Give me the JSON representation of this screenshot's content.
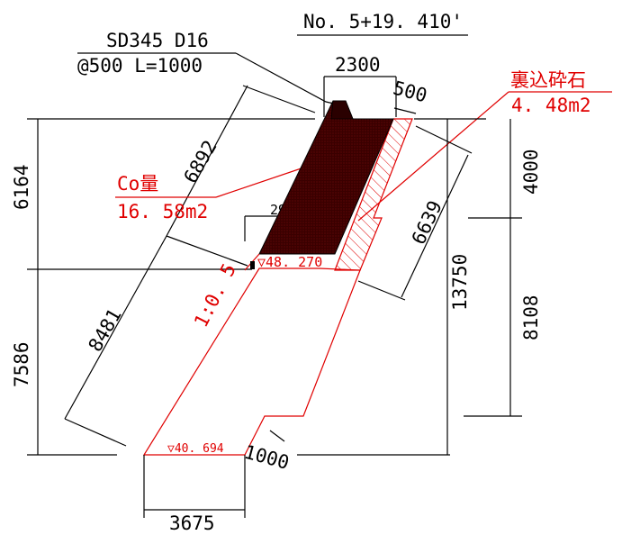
{
  "station": "No. 5+19. 410'",
  "rebar": {
    "line1": "SD345 D16",
    "line2": "@500 L=1000"
  },
  "backfill": {
    "label": "裏込砕石",
    "area": "4. 48m2"
  },
  "concrete": {
    "label": "Co量",
    "area": "16. 58m2"
  },
  "slope_ratio": "1:0. 5",
  "elevations": {
    "upper": "▽48. 270",
    "lower": "▽40. 694"
  },
  "dimensions": {
    "top_width": "2300",
    "backfill_width": "500",
    "crest_to_step_left": "6164",
    "lower_height_left": "7586",
    "upper_slope_length": "6892",
    "lower_slope_length": "8481",
    "step_width": "2916",
    "back_slope_length": "6639",
    "total_height": "13750",
    "right_upper": "4000",
    "right_lower": "8108",
    "bottom_width": "3675",
    "bottom_backfill": "1000"
  },
  "colors": {
    "concrete_fill": "#3a0000",
    "red_line": "#e00000",
    "black_line": "#000000"
  }
}
